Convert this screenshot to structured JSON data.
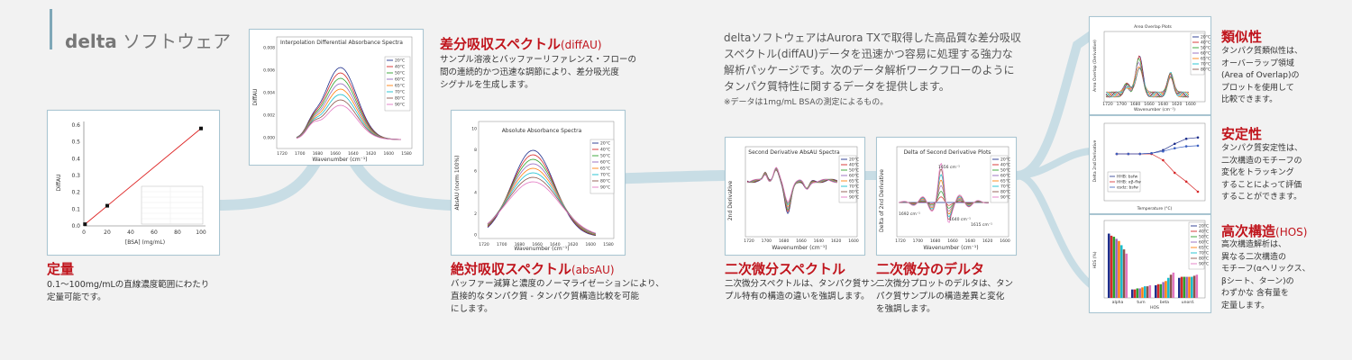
{
  "brand": {
    "bold": "delta",
    "rest": "ソフトウェア"
  },
  "intro": {
    "lines": [
      "deltaソフトウェアはAurora TXで取得した高品質な差分吸収",
      "スペクトル(diffAU)データを迅速かつ容易に処理する強力な",
      "解析パッケージです。次のデータ解析ワークフローのように",
      "タンパク質特性に関するデータを提供します。"
    ],
    "note": "※データは1mg/mL BSAの測定によるもの。"
  },
  "colors": {
    "heading": "#c0141c",
    "flow": "#c8dde5",
    "card_border": "#a9c6d2"
  },
  "sections": {
    "quant": {
      "title": "定量",
      "desc": [
        "0.1～100mg/mLの直線濃度範囲にわたり",
        "定量可能です。"
      ]
    },
    "diffau": {
      "title": "差分吸収スペクトル",
      "title_en": "(diffAU)",
      "desc": [
        "サンプル溶液とバッファーリファレンス・フローの",
        "間の連続的かつ迅速な調節により、差分吸光度",
        "シグナルを生成します。"
      ]
    },
    "absau": {
      "title": "絶対吸収スペクトル",
      "title_en": "(absAU)",
      "desc": [
        "バッファー減算と濃度のノーマライゼーションにより、",
        "直接的なタンパク質 - タンパク質構造比較を可能",
        "にします。"
      ]
    },
    "second": {
      "title": "二次微分スペクトル",
      "desc": [
        "二次微分スペクトルは、タンパク質サン",
        "プル特有の構造の違いを強調します。"
      ]
    },
    "delta2nd": {
      "title": "二次微分のデルタ",
      "desc": [
        "二次微分プロットのデルタは、タン",
        "パク質サンプルの構造差異と変化",
        "を強調します。"
      ]
    },
    "similarity": {
      "title": "類似性",
      "desc": [
        "タンパク質類似性は、",
        "オーバーラップ領域",
        "(Area of Overlap)の",
        "プロットを使用して",
        "比較できます。"
      ]
    },
    "stability": {
      "title": "安定性",
      "desc": [
        "タンパク質安定性は、",
        "二次構造のモチーフの",
        "変化をトラッキング",
        "することによって評価",
        "することができます。"
      ]
    },
    "hos": {
      "title": "高次構造",
      "title_en": "(HOS)",
      "desc": [
        "高次構造解析は、",
        "異なる二次構造の",
        "モチーフ(αヘリックス、",
        "βシート、ターン)の",
        "わずかな 含有量を",
        "定量します。"
      ]
    }
  },
  "chart_data": [
    {
      "type": "scatter",
      "ylabel": "DiffAU",
      "xlabel": "[BSA] (mg/mL)",
      "x": [
        1,
        20,
        100
      ],
      "y": [
        0.01,
        0.12,
        0.58
      ],
      "xticks": [
        "0",
        "20",
        "40",
        "60",
        "80",
        "100"
      ],
      "yticks": [
        "0.0",
        "0.1",
        "0.2",
        "0.3",
        "0.4",
        "0.5",
        "0.6"
      ],
      "xlim": [
        0,
        100
      ],
      "ylim": [
        0,
        0.6
      ]
    },
    {
      "type": "line",
      "title": "Interpolation Differential Absorbance Spectra",
      "ylabel": "DiffAU",
      "xlabel": "Wavenumber (cm⁻¹)",
      "xticks": [
        "1720",
        "1700",
        "1680",
        "1660",
        "1640",
        "1620",
        "1600",
        "1580"
      ],
      "yticks": [
        "0.008",
        "0.006",
        "0.004",
        "0.002",
        "0.000"
      ],
      "series_names": [
        "20°C",
        "40°C",
        "50°C",
        "60°C",
        "65°C",
        "70°C",
        "80°C",
        "90°C"
      ]
    },
    {
      "type": "line",
      "title": "Absolute Absorbance Spectra",
      "ylabel": "AbsAU (norm 100%)",
      "xlabel": "Wavenumber (cm⁻¹)",
      "xticks": [
        "1720",
        "1700",
        "1680",
        "1660",
        "1640",
        "1620",
        "1600",
        "1580"
      ],
      "yticks": [
        "10",
        "8",
        "6",
        "4",
        "2",
        "0"
      ],
      "series_names": [
        "20°C",
        "40°C",
        "50°C",
        "60°C",
        "65°C",
        "70°C",
        "80°C",
        "90°C"
      ]
    },
    {
      "type": "line",
      "title": "Second Derivative AbsAU Spectra",
      "ylabel": "2nd Derivative",
      "xlabel": "Wavenumber (cm⁻¹)",
      "xticks": [
        "1720",
        "1700",
        "1680",
        "1660",
        "1640",
        "1620",
        "1600"
      ],
      "series_names": [
        "20°C",
        "40°C",
        "50°C",
        "60°C",
        "65°C",
        "70°C",
        "80°C",
        "90°C"
      ]
    },
    {
      "type": "line",
      "title": "Delta of Second Derivative Plots",
      "ylabel": "Delta of 2nd Derivative",
      "xlabel": "Wavenumber (cm⁻¹)",
      "xticks": [
        "1720",
        "1700",
        "1680",
        "1660",
        "1640",
        "1620",
        "1600"
      ],
      "annotations": [
        "1656 cm⁻¹",
        "1692 cm⁻¹",
        "1640 cm⁻¹",
        "1615 cm⁻¹"
      ],
      "series_names": [
        "20°C",
        "40°C",
        "50°C",
        "60°C",
        "65°C",
        "70°C",
        "80°C",
        "90°C"
      ]
    },
    {
      "type": "line",
      "title": "Area Overlap Plots",
      "ylabel": "Area Overlap (Derivative)",
      "xlabel": "Wavenumber (cm⁻¹)",
      "xticks": [
        "1720",
        "1700",
        "1680",
        "1660",
        "1640",
        "1620",
        "1600"
      ],
      "series_names": [
        "20°C",
        "40°C",
        "50°C",
        "60°C",
        "65°C",
        "70°C",
        "80°C"
      ]
    },
    {
      "type": "line",
      "ylabel": "Delta 2nd Derivative",
      "xlabel": "Temperature (°C)",
      "x": [
        20,
        30,
        40,
        50,
        60,
        70,
        80,
        90
      ],
      "series": [
        {
          "name": "HHB: bsfw",
          "values": [
            0,
            0,
            0,
            0.05,
            0.3,
            0.8,
            1.2,
            1.3
          ]
        },
        {
          "name": "HHB: αβ-flw",
          "values": [
            0,
            0,
            0,
            0,
            -0.5,
            -1.5,
            -2.2,
            -3.0
          ]
        },
        {
          "name": "αsdz: bsfw",
          "values": [
            0,
            0,
            0,
            0.05,
            0.2,
            0.45,
            0.6,
            0.65
          ]
        }
      ]
    },
    {
      "type": "bar",
      "ylabel": "HOS (%)",
      "xlabel": "HOS",
      "categories": [
        "alpha",
        "turn",
        "beta",
        "unord."
      ],
      "series_names": [
        "20°C",
        "40°C",
        "50°C",
        "60°C",
        "65°C",
        "70°C",
        "80°C",
        "90°C"
      ],
      "values": [
        [
          61,
          59,
          58,
          56,
          54,
          50,
          46,
          42
        ],
        [
          8,
          8,
          9,
          9,
          10,
          11,
          11,
          12
        ],
        [
          12,
          13,
          13,
          15,
          16,
          19,
          22,
          24
        ],
        [
          19,
          20,
          20,
          20,
          20,
          20,
          21,
          22
        ]
      ]
    }
  ]
}
